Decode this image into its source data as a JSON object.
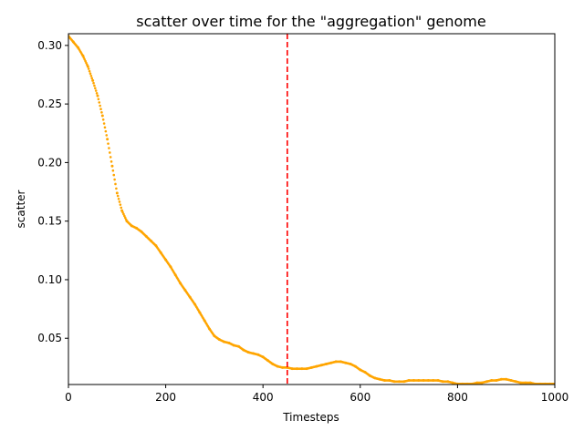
{
  "chart_data": {
    "type": "scatter",
    "title": "scatter over time for the \"aggregation\" genome",
    "xlabel": "Timesteps",
    "ylabel": "scatter",
    "xlim": [
      0,
      1000
    ],
    "ylim": [
      0.0105,
      0.31
    ],
    "x_ticks": [
      0,
      200,
      400,
      600,
      800,
      1000
    ],
    "y_ticks": [
      0.05,
      0.1,
      0.15,
      0.2,
      0.25,
      0.3
    ],
    "x_tick_labels": [
      "0",
      "200",
      "400",
      "600",
      "800",
      "1000"
    ],
    "y_tick_labels": [
      "0.05",
      "0.10",
      "0.15",
      "0.20",
      "0.25",
      "0.30"
    ],
    "grid": false,
    "series": [
      {
        "color": "#ffa500",
        "points": [
          [
            0,
            0.308
          ],
          [
            10,
            0.303
          ],
          [
            20,
            0.298
          ],
          [
            30,
            0.291
          ],
          [
            40,
            0.282
          ],
          [
            50,
            0.27
          ],
          [
            60,
            0.257
          ],
          [
            70,
            0.24
          ],
          [
            80,
            0.22
          ],
          [
            90,
            0.197
          ],
          [
            100,
            0.174
          ],
          [
            110,
            0.159
          ],
          [
            120,
            0.15
          ],
          [
            130,
            0.146
          ],
          [
            140,
            0.144
          ],
          [
            150,
            0.141
          ],
          [
            160,
            0.137
          ],
          [
            170,
            0.133
          ],
          [
            180,
            0.129
          ],
          [
            190,
            0.123
          ],
          [
            200,
            0.117
          ],
          [
            210,
            0.111
          ],
          [
            220,
            0.104
          ],
          [
            230,
            0.097
          ],
          [
            240,
            0.091
          ],
          [
            250,
            0.085
          ],
          [
            260,
            0.079
          ],
          [
            270,
            0.072
          ],
          [
            280,
            0.065
          ],
          [
            290,
            0.058
          ],
          [
            300,
            0.052
          ],
          [
            310,
            0.049
          ],
          [
            320,
            0.047
          ],
          [
            330,
            0.046
          ],
          [
            340,
            0.044
          ],
          [
            350,
            0.043
          ],
          [
            360,
            0.04
          ],
          [
            370,
            0.038
          ],
          [
            380,
            0.037
          ],
          [
            390,
            0.036
          ],
          [
            400,
            0.034
          ],
          [
            410,
            0.031
          ],
          [
            420,
            0.028
          ],
          [
            430,
            0.026
          ],
          [
            440,
            0.025
          ],
          [
            450,
            0.025
          ],
          [
            460,
            0.024
          ],
          [
            470,
            0.024
          ],
          [
            480,
            0.024
          ],
          [
            490,
            0.024
          ],
          [
            500,
            0.025
          ],
          [
            510,
            0.026
          ],
          [
            520,
            0.027
          ],
          [
            530,
            0.028
          ],
          [
            540,
            0.029
          ],
          [
            550,
            0.03
          ],
          [
            560,
            0.03
          ],
          [
            570,
            0.029
          ],
          [
            580,
            0.028
          ],
          [
            590,
            0.026
          ],
          [
            600,
            0.023
          ],
          [
            610,
            0.021
          ],
          [
            620,
            0.018
          ],
          [
            630,
            0.016
          ],
          [
            640,
            0.015
          ],
          [
            650,
            0.014
          ],
          [
            660,
            0.014
          ],
          [
            670,
            0.013
          ],
          [
            680,
            0.013
          ],
          [
            690,
            0.013
          ],
          [
            700,
            0.014
          ],
          [
            710,
            0.014
          ],
          [
            720,
            0.014
          ],
          [
            730,
            0.014
          ],
          [
            740,
            0.014
          ],
          [
            750,
            0.014
          ],
          [
            760,
            0.014
          ],
          [
            770,
            0.013
          ],
          [
            780,
            0.013
          ],
          [
            790,
            0.012
          ],
          [
            800,
            0.011
          ],
          [
            810,
            0.011
          ],
          [
            820,
            0.011
          ],
          [
            830,
            0.011
          ],
          [
            840,
            0.012
          ],
          [
            850,
            0.012
          ],
          [
            860,
            0.013
          ],
          [
            870,
            0.014
          ],
          [
            880,
            0.014
          ],
          [
            890,
            0.015
          ],
          [
            900,
            0.015
          ],
          [
            910,
            0.014
          ],
          [
            920,
            0.013
          ],
          [
            930,
            0.012
          ],
          [
            940,
            0.012
          ],
          [
            950,
            0.012
          ],
          [
            960,
            0.011
          ],
          [
            970,
            0.011
          ],
          [
            980,
            0.011
          ],
          [
            990,
            0.011
          ],
          [
            1000,
            0.011
          ]
        ]
      }
    ],
    "vline": {
      "x": 450,
      "color": "#ff0000",
      "style": "dashed"
    }
  }
}
